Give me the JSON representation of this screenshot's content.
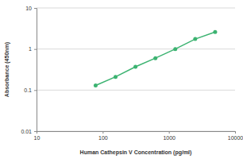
{
  "chart_data": {
    "type": "line",
    "marker": "circle",
    "color": "#3cb371",
    "x_label": "Human Cathepsin V Concentration (pg/ml)",
    "y_label": "Absorbance (450nm)",
    "x": [
      78.125,
      156.25,
      312.5,
      625,
      1250,
      2500,
      5000
    ],
    "values": [
      0.13,
      0.21,
      0.37,
      0.6,
      1.0,
      1.75,
      2.6
    ],
    "log": true,
    "grid": true,
    "xlim": [
      10,
      10000
    ],
    "xticks": [
      10,
      100,
      1000,
      10000
    ],
    "ylim": [
      0.01,
      10
    ],
    "yticks": [
      0.01,
      0.1,
      1,
      10
    ]
  }
}
